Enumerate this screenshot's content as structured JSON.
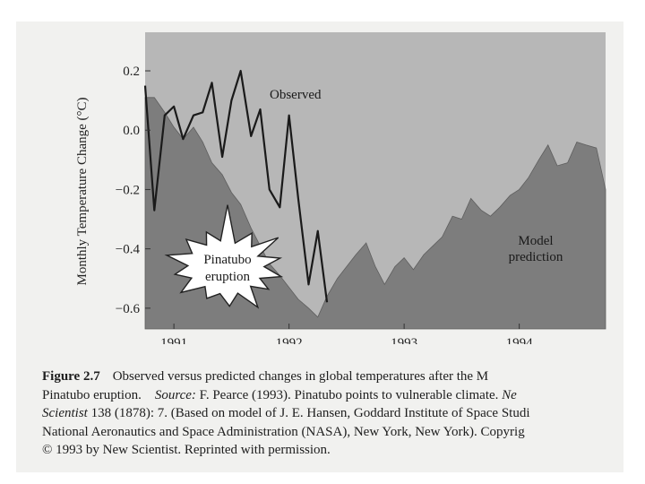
{
  "chart_data": {
    "type": "area",
    "title": "",
    "xlabel": "",
    "ylabel": "Monthly Temperature Change (°C)",
    "xlim": [
      1991.0,
      1995.0
    ],
    "ylim": [
      -0.67,
      0.33
    ],
    "x_tick_values": [
      1991.25,
      1992.25,
      1993.25,
      1994.25
    ],
    "x_tick_labels": [
      "1991",
      "1992",
      "1993",
      "1994"
    ],
    "y_tick_values": [
      0.2,
      0.0,
      -0.2,
      -0.4,
      -0.6
    ],
    "y_tick_labels": [
      "0.2",
      "0.0",
      "−0.2",
      "−0.4",
      "−0.6"
    ],
    "series": [
      {
        "name": "Model prediction",
        "style": "filled-area",
        "color": "#7d7d7d",
        "x": [
          1991.0,
          1991.08,
          1991.17,
          1991.25,
          1991.33,
          1991.42,
          1991.5,
          1991.58,
          1991.67,
          1991.75,
          1991.83,
          1991.92,
          1992.0,
          1992.08,
          1992.17,
          1992.25,
          1992.33,
          1992.42,
          1992.5,
          1992.58,
          1992.67,
          1992.75,
          1992.83,
          1992.92,
          1993.0,
          1993.08,
          1993.17,
          1993.25,
          1993.33,
          1993.42,
          1993.5,
          1993.58,
          1993.67,
          1993.75,
          1993.83,
          1993.92,
          1994.0,
          1994.08,
          1994.17,
          1994.25,
          1994.33,
          1994.42,
          1994.5,
          1994.58,
          1994.67,
          1994.75,
          1994.83,
          1994.92,
          1995.0
        ],
        "y": [
          0.11,
          0.11,
          0.06,
          0.01,
          -0.03,
          0.01,
          -0.04,
          -0.11,
          -0.15,
          -0.21,
          -0.25,
          -0.33,
          -0.39,
          -0.45,
          -0.49,
          -0.53,
          -0.57,
          -0.6,
          -0.63,
          -0.56,
          -0.5,
          -0.46,
          -0.42,
          -0.38,
          -0.46,
          -0.52,
          -0.46,
          -0.43,
          -0.47,
          -0.42,
          -0.39,
          -0.36,
          -0.29,
          -0.3,
          -0.23,
          -0.27,
          -0.29,
          -0.26,
          -0.22,
          -0.2,
          -0.16,
          -0.1,
          -0.05,
          -0.12,
          -0.11,
          -0.04,
          -0.05,
          -0.06,
          -0.2
        ]
      },
      {
        "name": "Observed",
        "style": "line",
        "color": "#1a1a1a",
        "x": [
          1991.0,
          1991.08,
          1991.17,
          1991.25,
          1991.33,
          1991.42,
          1991.5,
          1991.58,
          1991.67,
          1991.75,
          1991.83,
          1991.92,
          1992.0,
          1992.08,
          1992.17,
          1992.25,
          1992.33,
          1992.42,
          1992.5,
          1992.58
        ],
        "y": [
          0.15,
          -0.27,
          0.05,
          0.08,
          -0.03,
          0.05,
          0.06,
          0.16,
          -0.09,
          0.1,
          0.2,
          -0.02,
          0.07,
          -0.2,
          -0.26,
          0.05,
          -0.23,
          -0.52,
          -0.34,
          -0.58
        ]
      }
    ],
    "annotations": {
      "observed_label": "Observed",
      "model_label_line1": "Model",
      "model_label_line2": "prediction",
      "eruption_line1": "Pinatubo",
      "eruption_line2": "eruption"
    }
  },
  "caption": {
    "figure_number": "Figure 2.7",
    "line1": "Observed versus predicted changes in global temperatures after the M",
    "line2_text": "Pinatubo eruption.",
    "line2_source_label": "Source:",
    "line2_source": "F. Pearce (1993). Pinatubo points to vulnerable climate.",
    "line2_journal": "Ne",
    "line3_journal": "Scientist",
    "line3_text": "138 (1878): 7. (Based on model of J. E. Hansen, Goddard Institute of Space Studi",
    "line4": "National Aeronautics and Space Administration (NASA), New York, New York). Copyrig",
    "line5": "© 1993 by New Scientist. Reprinted with permission."
  },
  "colors": {
    "page": "#f1f1ef",
    "plot_bg": "#b7b7b7",
    "model_fill": "#7d7d7d",
    "observed_line": "#1a1a1a",
    "burst_fill": "#ffffff"
  },
  "icons": {
    "eruption": "explosion-burst-icon"
  }
}
